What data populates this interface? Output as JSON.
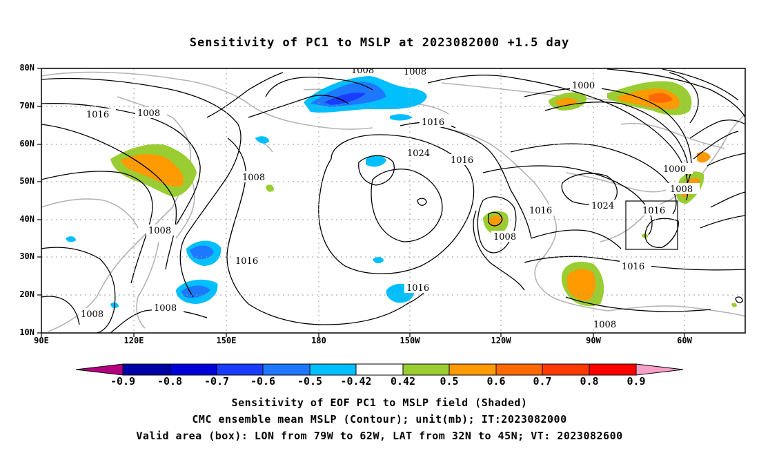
{
  "title": "Sensitivity of PC1 to MSLP at 2023082000 +1.5 day",
  "lat_ticks": [
    "80N",
    "70N",
    "60N",
    "50N",
    "40N",
    "30N",
    "20N",
    "10N"
  ],
  "lon_ticks": [
    "90E",
    "120E",
    "150E",
    "180",
    "150W",
    "120W",
    "90W",
    "60W"
  ],
  "contour_labels": [
    "1008",
    "1008",
    "1016",
    "1008",
    "1016",
    "1024",
    "1016",
    "1000",
    "1000",
    "1008",
    "1008",
    "1016",
    "1024",
    "1016",
    "1008",
    "1016",
    "1008",
    "1016",
    "1016",
    "1008",
    "1008",
    "1008"
  ],
  "box": {
    "lon_from": "79W",
    "lon_to": "62W",
    "lat_from": "32N",
    "lat_to": "45N"
  },
  "colorbar": {
    "labels": [
      "-0.9",
      "-0.8",
      "-0.7",
      "-0.6",
      "-0.5",
      "-0.42",
      "0.42",
      "0.5",
      "0.6",
      "0.7",
      "0.8",
      "0.9"
    ],
    "colors": [
      "#b4007e",
      "#0000a6",
      "#0000d8",
      "#1a3cff",
      "#1e78ff",
      "#00bfff",
      "#ffffff",
      "#9acd32",
      "#ff9a00",
      "#ff6a00",
      "#ff3a00",
      "#ff0000",
      "#f7a0c8"
    ]
  },
  "captions": {
    "line1": "Sensitivity of EOF PC1 to MSLP field (Shaded)",
    "line2": "CMC ensemble mean MSLP (Contour); unit(mb); IT:2023082000",
    "line3": "Valid area (box): LON from 79W to 62W, LAT from 32N to 45N; VT: 2023082600"
  }
}
